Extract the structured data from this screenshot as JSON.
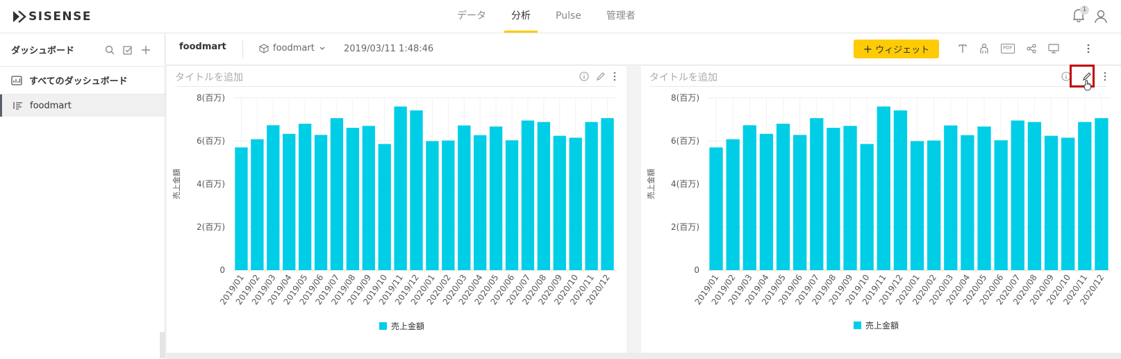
{
  "app": {
    "brand": "SISENSE",
    "nav": [
      {
        "label": "データ",
        "active": false
      },
      {
        "label": "分析",
        "active": true
      },
      {
        "label": "Pulse",
        "active": false
      },
      {
        "label": "管理者",
        "active": false
      }
    ],
    "notification_count": "1",
    "accent": "#ffcb05"
  },
  "sidebar": {
    "title": "ダッシュボード",
    "all_dashboards": "すべてのダッシュボード",
    "items": [
      {
        "label": "foodmart",
        "selected": true
      }
    ]
  },
  "toolbar": {
    "dashboard_name": "foodmart",
    "datasource": "foodmart",
    "timestamp": "2019/03/11 1:48:46",
    "add_widget_label": "ウィジェット",
    "pdf_label": "PDF"
  },
  "widgets": [
    {
      "title": "タイトルを追加"
    },
    {
      "title": "タイトルを追加"
    }
  ],
  "chart_data": [
    {
      "type": "bar",
      "title": "",
      "ylabel": "売上金額",
      "xlabel": "",
      "ylim": [
        0,
        8000000
      ],
      "yticks": [
        "0",
        "2(百万)",
        "4(百万)",
        "6(百万)",
        "8(百万)"
      ],
      "categories": [
        "2019/01",
        "2019/02",
        "2019/03",
        "2019/04",
        "2019/05",
        "2019/06",
        "2019/07",
        "2019/08",
        "2019/09",
        "2019/10",
        "2019/11",
        "2019/12",
        "2020/01",
        "2020/02",
        "2020/03",
        "2020/04",
        "2020/05",
        "2020/06",
        "2020/07",
        "2020/08",
        "2020/09",
        "2020/10",
        "2020/11",
        "2020/12"
      ],
      "series": [
        {
          "name": "売上金額",
          "color": "#00cee6",
          "values": [
            5700000,
            6080000,
            6730000,
            6330000,
            6800000,
            6280000,
            7060000,
            6610000,
            6700000,
            5860000,
            7600000,
            7420000,
            5990000,
            6020000,
            6720000,
            6270000,
            6670000,
            6030000,
            6950000,
            6880000,
            6240000,
            6150000,
            6880000,
            7060000
          ]
        }
      ],
      "legend": "bottom",
      "grid": true
    },
    {
      "type": "bar",
      "title": "",
      "ylabel": "売上金額",
      "xlabel": "",
      "ylim": [
        0,
        8000000
      ],
      "yticks": [
        "0",
        "2(百万)",
        "4(百万)",
        "6(百万)",
        "8(百万)"
      ],
      "categories": [
        "2019/01",
        "2019/02",
        "2019/03",
        "2019/04",
        "2019/05",
        "2019/06",
        "2019/07",
        "2019/08",
        "2019/09",
        "2019/10",
        "2019/11",
        "2019/12",
        "2020/01",
        "2020/02",
        "2020/03",
        "2020/04",
        "2020/05",
        "2020/06",
        "2020/07",
        "2020/08",
        "2020/09",
        "2020/10",
        "2020/11",
        "2020/12"
      ],
      "series": [
        {
          "name": "売上金額",
          "color": "#00cee6",
          "values": [
            5700000,
            6080000,
            6730000,
            6330000,
            6800000,
            6280000,
            7060000,
            6610000,
            6700000,
            5860000,
            7600000,
            7420000,
            5990000,
            6020000,
            6720000,
            6270000,
            6670000,
            6030000,
            6950000,
            6880000,
            6240000,
            6150000,
            6880000,
            7060000
          ]
        }
      ],
      "legend": "bottom",
      "grid": true
    }
  ]
}
